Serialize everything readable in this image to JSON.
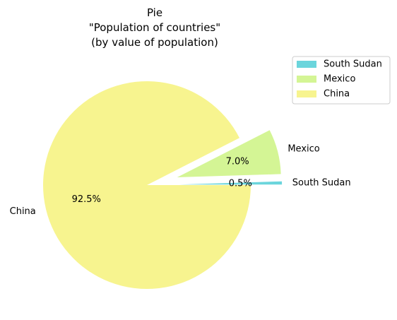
{
  "chart_data": {
    "type": "pie",
    "title_lines": [
      "Pie",
      "\"Population of countries\"",
      "(by value of population)"
    ],
    "slices": [
      {
        "name": "South Sudan",
        "value": 0.5,
        "label": "0.5%",
        "color": "#6bd5dc",
        "exploded": true
      },
      {
        "name": "Mexico",
        "value": 7.0,
        "label": "7.0%",
        "color": "#d4f595",
        "exploded": true
      },
      {
        "name": "China",
        "value": 92.5,
        "label": "92.5%",
        "color": "#f7f48f",
        "exploded": false
      }
    ],
    "start_angle_deg": 0,
    "direction": "counterclockwise",
    "legend": {
      "placement": "top-right outside",
      "entries": [
        "South Sudan",
        "Mexico",
        "China"
      ]
    }
  }
}
